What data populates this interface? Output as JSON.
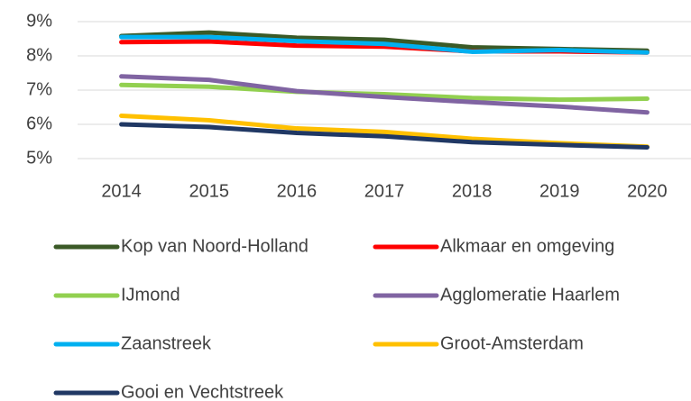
{
  "chart_data": {
    "type": "line",
    "categories": [
      "2014",
      "2015",
      "2016",
      "2017",
      "2018",
      "2019",
      "2020"
    ],
    "series": [
      {
        "name": "Kop van Noord-Holland",
        "color": "#3b5a27",
        "values": [
          8.58,
          8.68,
          8.53,
          8.47,
          8.25,
          8.2,
          8.15
        ]
      },
      {
        "name": "Alkmaar en omgeving",
        "color": "#ff0000",
        "values": [
          8.4,
          8.42,
          8.3,
          8.27,
          8.13,
          8.13,
          8.1
        ]
      },
      {
        "name": "IJmond",
        "color": "#92d050",
        "values": [
          7.15,
          7.1,
          6.95,
          6.88,
          6.77,
          6.72,
          6.75
        ]
      },
      {
        "name": "Agglomeratie Haarlem",
        "color": "#8064a2",
        "values": [
          7.4,
          7.3,
          6.97,
          6.8,
          6.65,
          6.52,
          6.35
        ]
      },
      {
        "name": "Zaanstreek",
        "color": "#00b0f0",
        "values": [
          8.55,
          8.55,
          8.43,
          8.35,
          8.12,
          8.17,
          8.1
        ]
      },
      {
        "name": "Groot-Amsterdam",
        "color": "#ffc000",
        "values": [
          6.25,
          6.12,
          5.88,
          5.78,
          5.58,
          5.45,
          5.35
        ]
      },
      {
        "name": "Gooi en Vechtstreek",
        "color": "#203864",
        "values": [
          6.0,
          5.92,
          5.75,
          5.65,
          5.48,
          5.4,
          5.33
        ]
      }
    ],
    "ylim": [
      5,
      9
    ],
    "yticks": [
      {
        "value": 5,
        "label": "5%"
      },
      {
        "value": 6,
        "label": "6%"
      },
      {
        "value": 7,
        "label": "7%"
      },
      {
        "value": 8,
        "label": "8%"
      },
      {
        "value": 9,
        "label": "9%"
      }
    ],
    "grid": true
  }
}
